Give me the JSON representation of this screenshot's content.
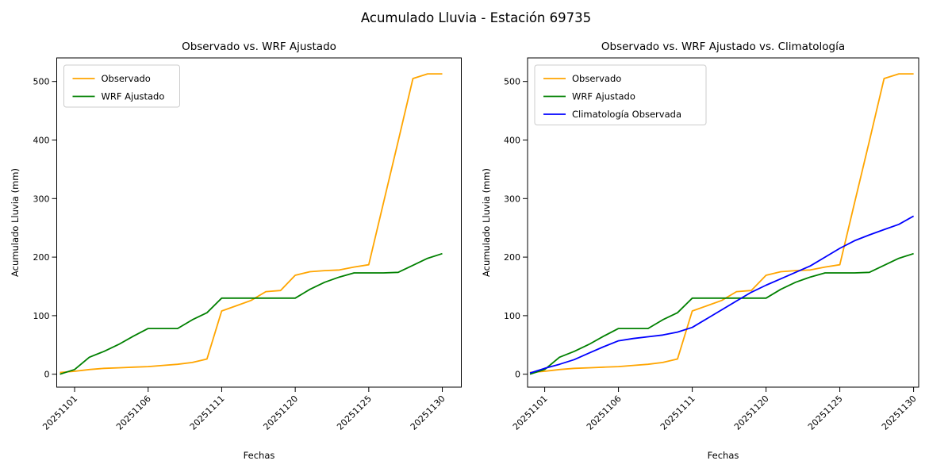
{
  "figure_title": "Acumulado Lluvia - Estación 69735",
  "chart_data": {
    "type": "line",
    "xlabel": "Fechas",
    "ylabel": "Acumulado Lluvia (mm)",
    "grid": false,
    "x_dates": [
      "20251031",
      "20251101",
      "20251102",
      "20251103",
      "20251104",
      "20251105",
      "20251106",
      "20251107",
      "20251108",
      "20251109",
      "20251110",
      "20251111",
      "20251116",
      "20251117",
      "20251118",
      "20251119",
      "20251120",
      "20251121",
      "20251122",
      "20251123",
      "20251124",
      "20251125",
      "20251126",
      "20251127",
      "20251128",
      "20251129",
      "20251130"
    ],
    "x_tick_indices": [
      1,
      6,
      11,
      16,
      21,
      26
    ],
    "x_tick_labels": [
      "20251101",
      "20251106",
      "20251111",
      "20251120",
      "20251125",
      "20251130"
    ],
    "y_ticks": [
      0,
      100,
      200,
      300,
      400,
      500
    ],
    "ylim": [
      -22,
      540
    ],
    "series": [
      {
        "name": "Observado",
        "color": "#FFA500",
        "values": [
          3,
          5,
          8,
          10,
          11,
          12,
          13,
          15,
          17,
          20,
          26,
          108,
          117,
          126,
          141,
          143,
          169,
          175,
          177,
          178,
          183,
          187,
          293,
          398,
          505,
          513,
          513
        ]
      },
      {
        "name": "WRF Ajustado",
        "color": "#008000",
        "values": [
          0,
          8,
          29,
          39,
          51,
          65,
          78,
          78,
          78,
          93,
          105,
          130,
          130,
          130,
          130,
          130,
          130,
          145,
          157,
          166,
          173,
          173,
          173,
          174,
          186,
          198,
          206
        ]
      },
      {
        "name": "Climatología Observada",
        "color": "#0000FF",
        "values": [
          2,
          10,
          17,
          25,
          36,
          47,
          57,
          61,
          64,
          67,
          72,
          80,
          95,
          110,
          125,
          140,
          152,
          163,
          174,
          185,
          200,
          215,
          228,
          238,
          247,
          256,
          270
        ]
      }
    ],
    "subplots": [
      {
        "title": "Observado vs. WRF Ajustado",
        "series": [
          "Observado",
          "WRF Ajustado"
        ],
        "legend_position": "upper left"
      },
      {
        "title": "Observado vs. WRF Ajustado vs. Climatología",
        "series": [
          "Observado",
          "WRF Ajustado",
          "Climatología Observada"
        ],
        "legend_position": "upper left"
      }
    ]
  }
}
